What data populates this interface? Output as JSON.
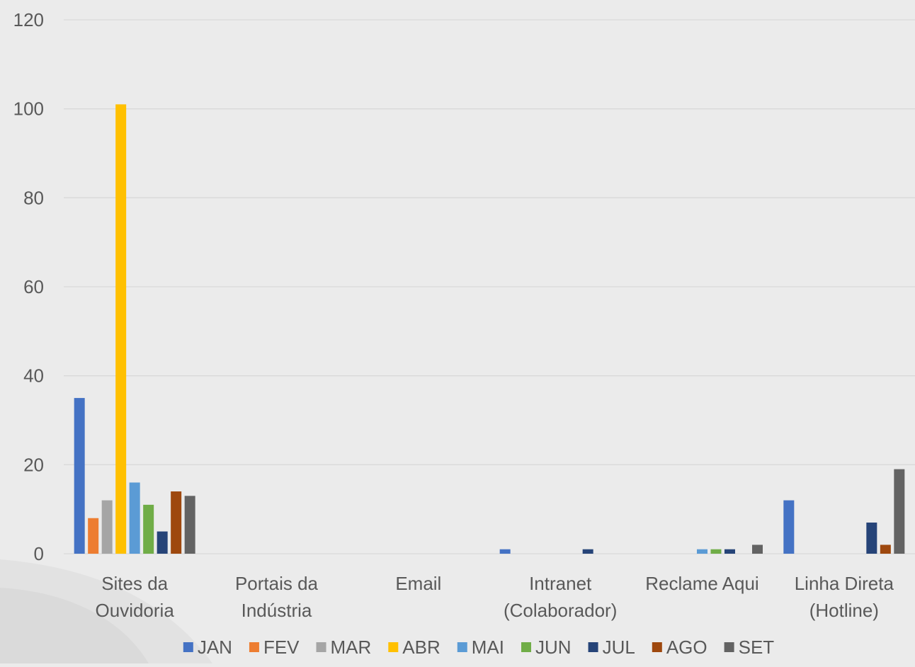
{
  "chart_data": {
    "type": "bar",
    "categories": [
      [
        "Sites da",
        "Ouvidoria"
      ],
      [
        "Portais da",
        "Indústria"
      ],
      [
        "Email"
      ],
      [
        "Intranet",
        "(Colaborador)"
      ],
      [
        "Reclame Aqui"
      ],
      [
        "Linha Direta",
        "(Hotline)"
      ]
    ],
    "series": [
      {
        "name": "JAN",
        "color": "#4472c4",
        "values": [
          35,
          0,
          0,
          1,
          0,
          12
        ]
      },
      {
        "name": "FEV",
        "color": "#ed7d31",
        "values": [
          8,
          0,
          0,
          0,
          0,
          0
        ]
      },
      {
        "name": "MAR",
        "color": "#a5a5a5",
        "values": [
          12,
          0,
          0,
          0,
          0,
          0
        ]
      },
      {
        "name": "ABR",
        "color": "#ffc000",
        "values": [
          101,
          0,
          0,
          0,
          0,
          0
        ]
      },
      {
        "name": "MAI",
        "color": "#5b9bd5",
        "values": [
          16,
          0,
          0,
          0,
          1,
          0
        ]
      },
      {
        "name": "JUN",
        "color": "#70ad47",
        "values": [
          11,
          0,
          0,
          0,
          1,
          0
        ]
      },
      {
        "name": "JUL",
        "color": "#264478",
        "values": [
          5,
          0,
          0,
          1,
          1,
          7
        ]
      },
      {
        "name": "AGO",
        "color": "#9e480e",
        "values": [
          14,
          0,
          0,
          0,
          0,
          2
        ]
      },
      {
        "name": "SET",
        "color": "#636363",
        "values": [
          13,
          0,
          0,
          0,
          2,
          19
        ]
      }
    ],
    "yticks": [
      "0",
      "20",
      "40",
      "60",
      "80",
      "100",
      "120"
    ],
    "ylim": [
      0,
      120
    ],
    "grid": true,
    "legend_position": "bottom",
    "colors": {
      "background": "#ebebeb",
      "grid": "#d9d9d9",
      "text": "#595959"
    }
  }
}
